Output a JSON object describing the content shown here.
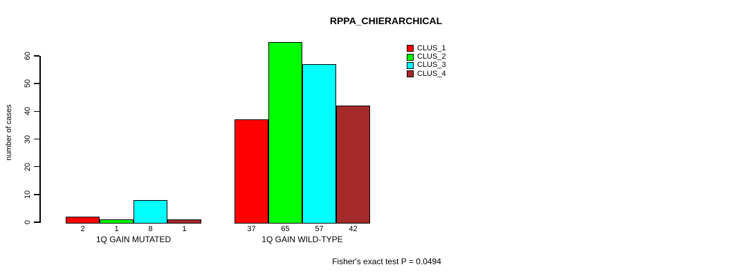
{
  "title": "RPPA_CHIERARCHICAL",
  "footer": "Fisher's exact test P = 0.0494",
  "chart_data": {
    "type": "bar",
    "title": "RPPA_CHIERARCHICAL",
    "ylabel": "number of cases",
    "xlabel": "",
    "yticks": [
      0,
      10,
      20,
      30,
      40,
      50,
      60
    ],
    "ylim": [
      0,
      65
    ],
    "grid": false,
    "legend_position": "top-right",
    "bar_outline_color": "#000000",
    "categories": [
      "1Q GAIN MUTATED",
      "1Q GAIN WILD-TYPE"
    ],
    "series": [
      {
        "name": "CLUS_1",
        "color": "#ff0000",
        "values": [
          2,
          37
        ]
      },
      {
        "name": "CLUS_2",
        "color": "#00ff00",
        "values": [
          1,
          65
        ]
      },
      {
        "name": "CLUS_3",
        "color": "#00ffff",
        "values": [
          8,
          57
        ]
      },
      {
        "name": "CLUS_4",
        "color": "#a52a2a",
        "values": [
          1,
          42
        ]
      }
    ],
    "bar_value_labels": {
      "1Q GAIN MUTATED": [
        2,
        1,
        8,
        1
      ],
      "1Q GAIN WILD-TYPE": [
        37,
        65,
        57,
        42
      ]
    },
    "annotation": "Fisher's exact test P = 0.0494"
  }
}
